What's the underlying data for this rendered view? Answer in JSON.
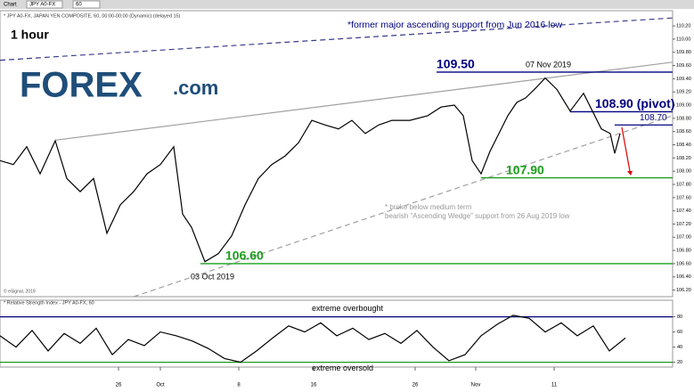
{
  "chart_data": {
    "type": "line",
    "header": {
      "window": "Chart",
      "symbol": "JPY A0-FX",
      "interval": "60"
    },
    "title": "* JPY A0-FX, JAPAN YEN COMPOSITE, 60, 00:00-00:00 (Dynamic) (delayed 15)",
    "timeframe": "1 hour",
    "logo": {
      "main": "FOREX",
      "suffix": ".com"
    },
    "copyright": "© eSignal, 2019",
    "annotations": {
      "former_support": "*former major ascending support from Jun 2016 low",
      "high_date": "07 Nov 2019",
      "low_date": "03 Oct 2019",
      "broke_line1": "* broke below medium term",
      "broke_line2": "bearish \"Ascending Wedge\" support from 26 Aug 2019 low"
    },
    "xlim": [
      0,
      755
    ],
    "xticks": [
      {
        "value": 133,
        "label": "26"
      },
      {
        "value": 180,
        "label": "Oct"
      },
      {
        "value": 268,
        "label": "8"
      },
      {
        "value": 352,
        "label": "16"
      },
      {
        "value": 466,
        "label": "26"
      },
      {
        "value": 534,
        "label": "Nov"
      },
      {
        "value": 622,
        "label": "11"
      }
    ],
    "ylim": [
      106.1,
      110.43
    ],
    "yticks": [
      {
        "value": 106.2,
        "label": "106.20"
      },
      {
        "value": 106.4,
        "label": "106.40"
      },
      {
        "value": 106.6,
        "label": "106.60"
      },
      {
        "value": 106.8,
        "label": "106.80"
      },
      {
        "value": 107.0,
        "label": "107.00"
      },
      {
        "value": 107.2,
        "label": "107.20"
      },
      {
        "value": 107.4,
        "label": "107.40"
      },
      {
        "value": 107.6,
        "label": "107.60"
      },
      {
        "value": 107.8,
        "label": "107.80"
      },
      {
        "value": 108.0,
        "label": "108.00"
      },
      {
        "value": 108.2,
        "label": "108.20"
      },
      {
        "value": 108.4,
        "label": "108.40"
      },
      {
        "value": 108.6,
        "label": "108.60"
      },
      {
        "value": 108.8,
        "label": "108.80"
      },
      {
        "value": 109.0,
        "label": "109.00"
      },
      {
        "value": 109.2,
        "label": "109.20"
      },
      {
        "value": 109.4,
        "label": "109.40"
      },
      {
        "value": 109.6,
        "label": "109.60"
      },
      {
        "value": 109.8,
        "label": "109.80"
      },
      {
        "value": 110.0,
        "label": "110.00"
      },
      {
        "value": 110.2,
        "label": "110.20"
      }
    ],
    "series": [
      {
        "name": "JPY A0-FX",
        "color": "#000000",
        "x": [
          0,
          15,
          30,
          45,
          62,
          75,
          90,
          105,
          120,
          135,
          150,
          165,
          180,
          195,
          205,
          215,
          230,
          245,
          260,
          275,
          290,
          305,
          320,
          335,
          350,
          365,
          380,
          395,
          410,
          425,
          440,
          460,
          480,
          495,
          510,
          520,
          530,
          540,
          550,
          560,
          570,
          580,
          590,
          600,
          612,
          625,
          640,
          655,
          665,
          675,
          685,
          690,
          696
        ],
        "values": [
          108.16,
          108.1,
          108.37,
          107.96,
          108.46,
          107.89,
          107.69,
          107.89,
          107.06,
          107.49,
          107.69,
          107.96,
          108.1,
          108.37,
          107.35,
          107.15,
          106.63,
          106.75,
          107.02,
          107.49,
          107.89,
          108.1,
          108.23,
          108.43,
          108.77,
          108.7,
          108.64,
          108.77,
          108.57,
          108.7,
          108.77,
          108.77,
          108.84,
          108.97,
          109.0,
          108.84,
          108.16,
          107.96,
          108.3,
          108.57,
          108.84,
          109.04,
          109.11,
          109.24,
          109.41,
          109.24,
          108.91,
          109.18,
          108.91,
          108.64,
          108.57,
          108.27,
          108.57
        ]
      }
    ],
    "levels": [
      {
        "value": 109.5,
        "label": "109.50",
        "color": "#000080",
        "x": [
          490,
          755
        ]
      },
      {
        "value": 108.9,
        "label": "108.90 (pivot)",
        "color": "#000080",
        "x": [
          640,
          755
        ]
      },
      {
        "value": 108.7,
        "label": "108.70",
        "color": "#000080",
        "x": [
          690,
          755
        ]
      },
      {
        "value": 107.9,
        "label": "107.90",
        "color": "#1a9e1a",
        "x": [
          540,
          755
        ]
      },
      {
        "value": 106.6,
        "label": "106.60",
        "color": "#1a9e1a",
        "x": [
          225,
          755
        ]
      }
    ],
    "trendlines": [
      {
        "x": [
          0,
          755
        ],
        "values": [
          109.68,
          110.32
        ],
        "color": "#3a3a8c",
        "dashed": true
      },
      {
        "x": [
          62,
          755
        ],
        "values": [
          108.47,
          109.65
        ],
        "color": "#a0a0a0",
        "dashed": false
      },
      {
        "x": [
          150,
          755
        ],
        "values": [
          106.1,
          108.84
        ],
        "color": "#a0a0a0",
        "dashed": true
      }
    ],
    "rsi": {
      "title": "* Relative Strength Index - JPY A0-FX, 60",
      "color": "#000000",
      "ylim": [
        16,
        96
      ],
      "yticks": [
        20,
        40,
        60,
        80
      ],
      "x": [
        0,
        18,
        36,
        54,
        72,
        90,
        108,
        126,
        144,
        162,
        180,
        198,
        216,
        234,
        252,
        270,
        288,
        306,
        324,
        342,
        360,
        378,
        396,
        414,
        432,
        450,
        468,
        486,
        504,
        522,
        540,
        558,
        576,
        594,
        612,
        630,
        648,
        666,
        684,
        702
      ],
      "values": [
        55,
        40,
        62,
        35,
        58,
        45,
        65,
        30,
        50,
        42,
        60,
        55,
        48,
        38,
        25,
        20,
        35,
        52,
        68,
        60,
        72,
        55,
        65,
        50,
        58,
        45,
        62,
        40,
        22,
        30,
        55,
        70,
        82,
        78,
        60,
        72,
        55,
        68,
        35,
        52
      ],
      "overbought": {
        "value": 80,
        "label": "extreme overbought",
        "color": "#000080"
      },
      "oversold": {
        "value": 20,
        "label": "extreme oversold",
        "color": "#1a9e1a"
      }
    }
  }
}
